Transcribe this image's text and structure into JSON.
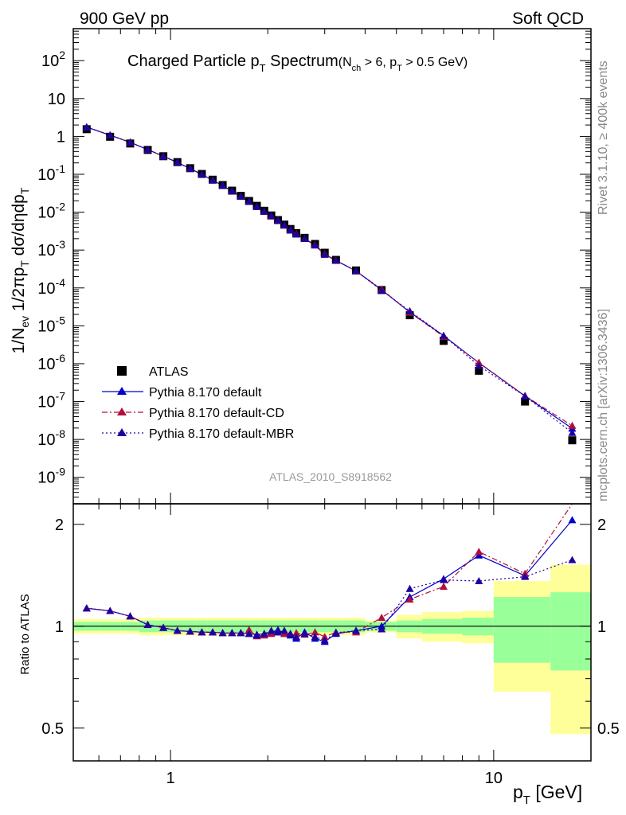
{
  "header": {
    "left": "900 GeV pp",
    "right": "Soft QCD"
  },
  "side_text": {
    "rivet": "Rivet 3.1.10, ≥ 400k events",
    "mcplots": "mcplots.cern.ch [arXiv:1306.3436]"
  },
  "analysis_id": "ATLAS_2010_S8918562",
  "chart_data": [
    {
      "type": "scatter",
      "panel": "main",
      "title": "Charged Particle p_T Spectrum",
      "title_parts": {
        "main": "Charged Particle p",
        "sub": "T",
        "after": " Spectrum",
        "cond_a": "(N",
        "cond_a_sub": "ch",
        "cond_b": " > 6, p",
        "cond_b_sub": "T",
        "cond_c": " > 0.5 GeV)"
      },
      "ylabel": "1/N_ev 1/2πp_T dσ/dηdp_T",
      "ylabel_parts": {
        "a": "1/N",
        "a_sub": "ev",
        "b": " 1/2πp",
        "b_sub": "T",
        "c": " dσ/dηdp",
        "c_sub": "T"
      },
      "x_scale": "log",
      "y_scale": "log",
      "xlim": [
        0.5,
        20
      ],
      "ylim": [
        2e-10,
        700
      ],
      "y_tick_labels": [
        "10^2",
        "10",
        "1",
        "10^-1",
        "10^-2",
        "10^-3",
        "10^-4",
        "10^-5",
        "10^-6",
        "10^-7",
        "10^-8",
        "10^-9"
      ],
      "x": [
        0.55,
        0.65,
        0.75,
        0.85,
        0.95,
        1.05,
        1.15,
        1.25,
        1.35,
        1.45,
        1.55,
        1.65,
        1.75,
        1.85,
        1.95,
        2.05,
        2.15,
        2.25,
        2.35,
        2.45,
        2.6,
        2.8,
        3.0,
        3.25,
        3.75,
        4.5,
        5.5,
        7.0,
        9.0,
        12.5,
        17.5
      ],
      "series": [
        {
          "name": "ATLAS",
          "style": "black-square",
          "values": [
            1.55,
            0.98,
            0.65,
            0.44,
            0.3,
            0.21,
            0.145,
            0.102,
            0.072,
            0.052,
            0.037,
            0.027,
            0.0198,
            0.0147,
            0.0109,
            0.0082,
            0.0062,
            0.0047,
            0.0036,
            0.0028,
            0.0021,
            0.00145,
            0.00085,
            0.00055,
            0.00029,
            8.8e-05,
            1.9e-05,
            4e-06,
            6.5e-07,
            1e-07,
            9.5e-09
          ]
        },
        {
          "name": "Pythia 8.170 default",
          "style": "solid",
          "color": "#0000cc",
          "values": [
            1.76,
            1.08,
            0.7,
            0.45,
            0.3,
            0.206,
            0.141,
            0.099,
            0.07,
            0.05,
            0.036,
            0.026,
            0.0188,
            0.0139,
            0.0104,
            0.0079,
            0.0061,
            0.0045,
            0.0033,
            0.0026,
            0.002,
            0.00133,
            0.00077,
            0.00053,
            0.00028,
            8.9e-05,
            2.3e-05,
            5.5e-06,
            1.05e-06,
            1.4e-07,
            1.95e-08
          ]
        },
        {
          "name": "Pythia 8.170 default-CD",
          "style": "dashdot",
          "color": "#b0103a",
          "values": [
            1.76,
            1.08,
            0.7,
            0.45,
            0.3,
            0.206,
            0.141,
            0.099,
            0.07,
            0.05,
            0.036,
            0.026,
            0.019,
            0.0138,
            0.0103,
            0.0078,
            0.006,
            0.0045,
            0.0034,
            0.0027,
            0.00199,
            0.00138,
            0.00079,
            0.00053,
            0.00028,
            9.2e-05,
            2.25e-05,
            5.2e-06,
            1.07e-06,
            1.42e-07,
            2.3e-08
          ]
        },
        {
          "name": "Pythia 8.170 default-MBR",
          "style": "dotted",
          "color": "#2000a0",
          "values": [
            1.76,
            1.08,
            0.7,
            0.45,
            0.3,
            0.206,
            0.141,
            0.099,
            0.07,
            0.05,
            0.036,
            0.026,
            0.0188,
            0.0139,
            0.0104,
            0.008,
            0.006,
            0.0046,
            0.0034,
            0.0026,
            0.00199,
            0.00135,
            0.00076,
            0.00053,
            0.00028,
            8.6e-05,
            2.45e-05,
            5.5e-06,
            8.8e-07,
            1.4e-07,
            1.5e-08
          ]
        }
      ],
      "legend_position": "bottom-left"
    },
    {
      "type": "line",
      "panel": "ratio",
      "ylabel": "Ratio to ATLAS",
      "xlabel": "p_T  [GeV]",
      "xlabel_parts": {
        "a": "p",
        "a_sub": "T",
        "b": "  [GeV]"
      },
      "x_scale": "log",
      "y_scale": "log",
      "xlim": [
        0.5,
        20
      ],
      "ylim": [
        0.4,
        2.3
      ],
      "x_tick_labels": [
        "1",
        "10"
      ],
      "y_tick_labels": [
        "0.5",
        "1",
        "2"
      ],
      "x": [
        0.55,
        0.65,
        0.75,
        0.85,
        0.95,
        1.05,
        1.15,
        1.25,
        1.35,
        1.45,
        1.55,
        1.65,
        1.75,
        1.85,
        1.95,
        2.05,
        2.15,
        2.25,
        2.35,
        2.45,
        2.6,
        2.8,
        3.0,
        3.25,
        3.75,
        4.5,
        5.5,
        7.0,
        9.0,
        12.5,
        17.5
      ],
      "series": [
        {
          "name": "Pythia 8.170 default",
          "values": [
            1.13,
            1.11,
            1.07,
            1.01,
            0.99,
            0.97,
            0.965,
            0.96,
            0.96,
            0.955,
            0.955,
            0.955,
            0.95,
            0.945,
            0.95,
            0.96,
            0.975,
            0.95,
            0.94,
            0.92,
            0.96,
            0.92,
            0.9,
            0.95,
            0.97,
            1.0,
            1.22,
            1.38,
            1.62,
            1.41,
            2.06
          ]
        },
        {
          "name": "Pythia 8.170 default-CD",
          "values": [
            1.13,
            1.11,
            1.07,
            1.01,
            0.99,
            0.97,
            0.965,
            0.96,
            0.96,
            0.955,
            0.955,
            0.955,
            0.975,
            0.935,
            0.94,
            0.95,
            0.96,
            0.95,
            0.95,
            0.955,
            0.945,
            0.96,
            0.93,
            0.96,
            0.96,
            1.06,
            1.2,
            1.31,
            1.66,
            1.43,
            2.35
          ]
        },
        {
          "name": "Pythia 8.170 default-MBR",
          "values": [
            1.13,
            1.11,
            1.07,
            1.01,
            0.99,
            0.97,
            0.965,
            0.96,
            0.96,
            0.955,
            0.955,
            0.955,
            0.95,
            0.94,
            0.95,
            0.97,
            0.96,
            0.97,
            0.95,
            0.93,
            0.95,
            0.93,
            0.91,
            0.955,
            0.97,
            0.98,
            1.29,
            1.37,
            1.36,
            1.4,
            1.57
          ]
        }
      ],
      "uncertainty_bands": {
        "x_edges": [
          0.5,
          0.6,
          0.7,
          0.8,
          0.9,
          1.0,
          1.1,
          1.2,
          1.3,
          1.4,
          1.5,
          1.6,
          1.7,
          1.8,
          1.9,
          2.0,
          2.1,
          2.2,
          2.3,
          2.4,
          2.5,
          2.7,
          2.9,
          3.1,
          3.4,
          4.0,
          5.0,
          6.0,
          8.0,
          10.0,
          15.0,
          20.0
        ],
        "green_half_width": [
          0.03,
          0.03,
          0.03,
          0.04,
          0.04,
          0.04,
          0.04,
          0.04,
          0.04,
          0.04,
          0.04,
          0.04,
          0.04,
          0.04,
          0.04,
          0.04,
          0.04,
          0.04,
          0.04,
          0.04,
          0.04,
          0.04,
          0.04,
          0.04,
          0.04,
          0.03,
          0.04,
          0.05,
          0.06,
          0.22,
          0.26
        ],
        "yellow_half_width": [
          0.05,
          0.05,
          0.05,
          0.06,
          0.06,
          0.06,
          0.06,
          0.06,
          0.06,
          0.06,
          0.06,
          0.06,
          0.06,
          0.06,
          0.06,
          0.06,
          0.06,
          0.06,
          0.06,
          0.06,
          0.06,
          0.06,
          0.06,
          0.06,
          0.06,
          0.04,
          0.08,
          0.1,
          0.11,
          0.36,
          0.52
        ]
      }
    }
  ]
}
